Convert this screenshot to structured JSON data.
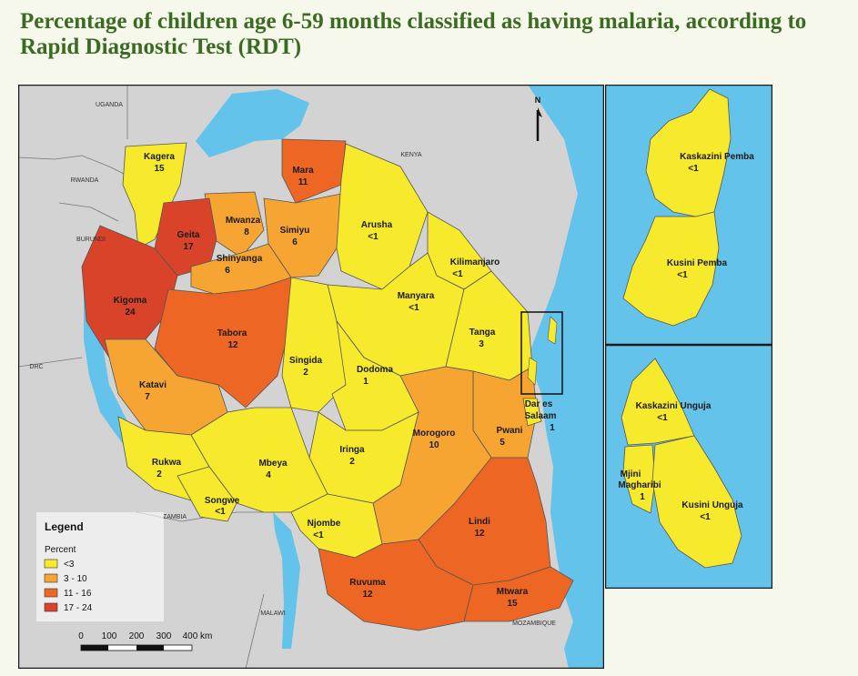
{
  "title": "Percentage of children age 6-59 months classified as having malaria, according to Rapid Diagnostic Test (RDT)",
  "colors": {
    "lt3": "#f7ea2c",
    "c3_10": "#f6a533",
    "c11_16": "#ee6623",
    "c17_24": "#d8432a",
    "water": "#64c3ea",
    "land": "#d3d3d3",
    "frame": "#1a1a1a"
  },
  "regions": {
    "kagera": {
      "name": "Kagera",
      "value": "15"
    },
    "mara": {
      "name": "Mara",
      "value": "11"
    },
    "mwanza": {
      "name": "Mwanza",
      "value": "8"
    },
    "simiyu": {
      "name": "Simiyu",
      "value": "6"
    },
    "geita": {
      "name": "Geita",
      "value": "17"
    },
    "shinyanga": {
      "name": "Shinyanga",
      "value": "6"
    },
    "arusha": {
      "name": "Arusha",
      "value": "<1"
    },
    "kilimanjaro": {
      "name": "Kilimanjaro",
      "value": "<1"
    },
    "manyara": {
      "name": "Manyara",
      "value": "<1"
    },
    "tanga": {
      "name": "Tanga",
      "value": "3"
    },
    "kigoma": {
      "name": "Kigoma",
      "value": "24"
    },
    "tabora": {
      "name": "Tabora",
      "value": "12"
    },
    "singida": {
      "name": "Singida",
      "value": "2"
    },
    "dodoma": {
      "name": "Dodoma",
      "value": "1"
    },
    "katavi": {
      "name": "Katavi",
      "value": "7"
    },
    "dar": {
      "name1": "Dar es",
      "name2": "Salaam",
      "value": "1"
    },
    "pwani": {
      "name": "Pwani",
      "value": "5"
    },
    "morogoro": {
      "name": "Morogoro",
      "value": "10"
    },
    "iringa": {
      "name": "Iringa",
      "value": "2"
    },
    "rukwa": {
      "name": "Rukwa",
      "value": "2"
    },
    "mbeya": {
      "name": "Mbeya",
      "value": "4"
    },
    "songwe": {
      "name": "Songwe",
      "value": "<1"
    },
    "njombe": {
      "name": "Njombe",
      "value": "<1"
    },
    "lindi": {
      "name": "Lindi",
      "value": "12"
    },
    "ruvuma": {
      "name": "Ruvuma",
      "value": "12"
    },
    "mtwara": {
      "name": "Mtwara",
      "value": "15"
    },
    "kaskazini_pemba": {
      "name": "Kaskazini Pemba",
      "value": "<1"
    },
    "kusini_pemba": {
      "name": "Kusini Pemba",
      "value": "<1"
    },
    "kaskazini_unguja": {
      "name": "Kaskazini Unguja",
      "value": "<1"
    },
    "mjini_magharibi": {
      "name1": "Mjini",
      "name2": "Magharibi",
      "value": "1"
    },
    "kusini_unguja": {
      "name": "Kusini Unguja",
      "value": "<1"
    }
  },
  "countries": {
    "uganda": "UGANDA",
    "kenya": "KENYA",
    "rwanda": "RWANDA",
    "burundi": "BURUNDI",
    "drc": "DRC",
    "zambia": "ZAMBIA",
    "malawi": "MALAWI",
    "mozambique": "MOZAMBIQUE"
  },
  "north": "N",
  "legend": {
    "title": "Legend",
    "subtitle": "Percent",
    "items": [
      "<3",
      "3 - 10",
      "11 - 16",
      "17 - 24"
    ]
  },
  "scale": {
    "ticks": [
      "0",
      "100",
      "200",
      "300",
      "400 km"
    ]
  }
}
